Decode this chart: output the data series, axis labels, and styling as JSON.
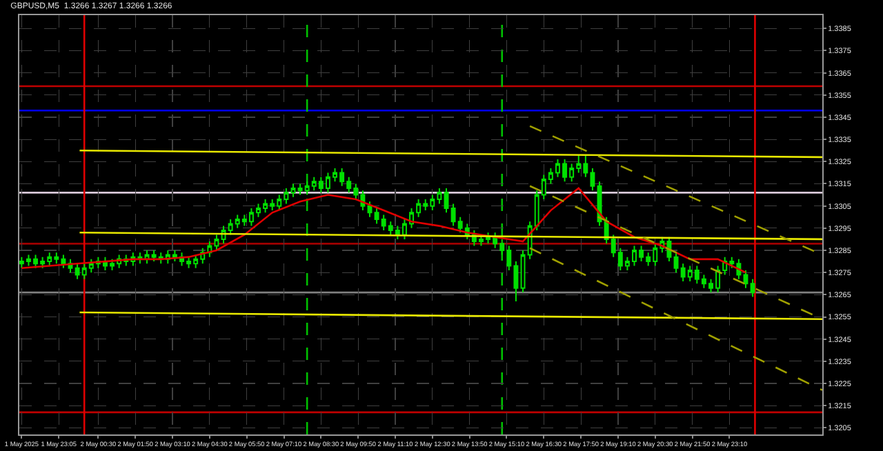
{
  "chart_data": {
    "type": "candlestick",
    "title": "GBPUSD,M5  1.3266 1.3267 1.3266 1.3266",
    "color": "#00e000",
    "grid": true,
    "x": [
      "2025-05-01T21:45",
      "2025-05-01T22:00",
      "2025-05-01T22:15",
      "2025-05-01T22:30",
      "2025-05-01T22:45",
      "2025-05-01T23:00",
      "2025-05-01T23:15",
      "2025-05-01T23:30",
      "2025-05-01T23:45",
      "2025-05-02T00:00",
      "2025-05-02T00:15",
      "2025-05-02T00:30",
      "2025-05-02T00:45",
      "2025-05-02T01:00",
      "2025-05-02T01:15",
      "2025-05-02T01:30",
      "2025-05-02T01:45",
      "2025-05-02T02:00",
      "2025-05-02T02:15",
      "2025-05-02T02:30",
      "2025-05-02T02:45",
      "2025-05-02T03:00",
      "2025-05-02T03:15",
      "2025-05-02T03:30",
      "2025-05-02T03:45",
      "2025-05-02T04:00",
      "2025-05-02T04:15",
      "2025-05-02T04:30",
      "2025-05-02T04:45",
      "2025-05-02T05:00",
      "2025-05-02T05:15",
      "2025-05-02T05:30",
      "2025-05-02T05:45",
      "2025-05-02T06:00",
      "2025-05-02T06:15",
      "2025-05-02T06:30",
      "2025-05-02T06:45",
      "2025-05-02T07:00",
      "2025-05-02T07:15",
      "2025-05-02T07:30",
      "2025-05-02T07:45",
      "2025-05-02T08:00",
      "2025-05-02T08:15",
      "2025-05-02T08:30",
      "2025-05-02T08:45",
      "2025-05-02T09:00",
      "2025-05-02T09:15",
      "2025-05-02T09:30",
      "2025-05-02T09:45",
      "2025-05-02T10:00",
      "2025-05-02T10:15",
      "2025-05-02T10:30",
      "2025-05-02T10:45",
      "2025-05-02T11:00",
      "2025-05-02T11:15",
      "2025-05-02T11:30",
      "2025-05-02T11:45",
      "2025-05-02T12:00",
      "2025-05-02T12:15",
      "2025-05-02T12:30",
      "2025-05-02T12:45",
      "2025-05-02T13:00",
      "2025-05-02T13:15",
      "2025-05-02T13:30",
      "2025-05-02T13:45",
      "2025-05-02T14:00",
      "2025-05-02T14:15",
      "2025-05-02T14:30",
      "2025-05-02T14:45",
      "2025-05-02T15:00",
      "2025-05-02T15:15",
      "2025-05-02T15:30",
      "2025-05-02T15:45",
      "2025-05-02T16:00",
      "2025-05-02T16:15",
      "2025-05-02T16:30",
      "2025-05-02T16:45",
      "2025-05-02T17:00",
      "2025-05-02T17:15",
      "2025-05-02T17:30",
      "2025-05-02T17:45",
      "2025-05-02T18:00",
      "2025-05-02T18:15",
      "2025-05-02T18:30",
      "2025-05-02T18:45",
      "2025-05-02T19:00",
      "2025-05-02T19:15",
      "2025-05-02T19:30",
      "2025-05-02T19:45",
      "2025-05-02T20:00",
      "2025-05-02T20:15",
      "2025-05-02T20:30",
      "2025-05-02T20:45",
      "2025-05-02T21:00",
      "2025-05-02T21:15",
      "2025-05-02T21:30",
      "2025-05-02T21:45",
      "2025-05-02T22:00",
      "2025-05-02T22:15",
      "2025-05-02T22:30",
      "2025-05-02T22:45",
      "2025-05-02T23:00",
      "2025-05-02T23:15",
      "2025-05-02T23:30",
      "2025-05-02T23:45",
      "2025-05-03T00:00"
    ],
    "ohlc": [
      [
        1.3279,
        1.3282,
        1.3277,
        1.328
      ],
      [
        1.328,
        1.3283,
        1.3278,
        1.3281
      ],
      [
        1.3281,
        1.3283,
        1.3277,
        1.3279
      ],
      [
        1.3279,
        1.3282,
        1.3277,
        1.328
      ],
      [
        1.328,
        1.3284,
        1.3278,
        1.3282
      ],
      [
        1.3282,
        1.3284,
        1.3279,
        1.3281
      ],
      [
        1.3281,
        1.3283,
        1.3277,
        1.3279
      ],
      [
        1.3279,
        1.3281,
        1.3275,
        1.3277
      ],
      [
        1.3277,
        1.3279,
        1.3272,
        1.3274
      ],
      [
        1.3274,
        1.3279,
        1.3272,
        1.3277
      ],
      [
        1.3277,
        1.3281,
        1.3275,
        1.3279
      ],
      [
        1.3279,
        1.3282,
        1.3277,
        1.328
      ],
      [
        1.328,
        1.3282,
        1.3276,
        1.3278
      ],
      [
        1.3278,
        1.3281,
        1.3276,
        1.3279
      ],
      [
        1.3279,
        1.3283,
        1.3277,
        1.3281
      ],
      [
        1.3281,
        1.3283,
        1.3278,
        1.328
      ],
      [
        1.328,
        1.3284,
        1.3278,
        1.3282
      ],
      [
        1.3282,
        1.3284,
        1.3279,
        1.3281
      ],
      [
        1.3281,
        1.3285,
        1.3279,
        1.3283
      ],
      [
        1.3283,
        1.3285,
        1.328,
        1.3282
      ],
      [
        1.3282,
        1.3284,
        1.3279,
        1.3281
      ],
      [
        1.3281,
        1.3285,
        1.3279,
        1.3283
      ],
      [
        1.3283,
        1.3285,
        1.328,
        1.3282
      ],
      [
        1.3282,
        1.3284,
        1.3278,
        1.328
      ],
      [
        1.328,
        1.3282,
        1.3277,
        1.3279
      ],
      [
        1.3279,
        1.3283,
        1.3277,
        1.3281
      ],
      [
        1.3281,
        1.3286,
        1.3279,
        1.3284
      ],
      [
        1.3284,
        1.3289,
        1.3282,
        1.3287
      ],
      [
        1.3287,
        1.3292,
        1.3285,
        1.329
      ],
      [
        1.329,
        1.3296,
        1.3288,
        1.3294
      ],
      [
        1.3294,
        1.3299,
        1.3292,
        1.3297
      ],
      [
        1.3297,
        1.3301,
        1.3295,
        1.3299
      ],
      [
        1.3299,
        1.3301,
        1.3296,
        1.3298
      ],
      [
        1.3298,
        1.3304,
        1.3296,
        1.3302
      ],
      [
        1.3302,
        1.3306,
        1.33,
        1.3304
      ],
      [
        1.3304,
        1.3308,
        1.3302,
        1.3306
      ],
      [
        1.3306,
        1.3308,
        1.3303,
        1.3305
      ],
      [
        1.3305,
        1.331,
        1.3303,
        1.3308
      ],
      [
        1.3308,
        1.3313,
        1.3306,
        1.3311
      ],
      [
        1.3311,
        1.3315,
        1.3309,
        1.3313
      ],
      [
        1.3313,
        1.3315,
        1.331,
        1.3312
      ],
      [
        1.3312,
        1.3316,
        1.331,
        1.3314
      ],
      [
        1.3314,
        1.3318,
        1.3312,
        1.3316
      ],
      [
        1.3316,
        1.3318,
        1.3311,
        1.3313
      ],
      [
        1.3313,
        1.332,
        1.3311,
        1.3318
      ],
      [
        1.3318,
        1.3322,
        1.3316,
        1.332
      ],
      [
        1.332,
        1.3322,
        1.3314,
        1.3316
      ],
      [
        1.3316,
        1.3318,
        1.3311,
        1.3313
      ],
      [
        1.3313,
        1.3315,
        1.3308,
        1.331
      ],
      [
        1.331,
        1.3312,
        1.3303,
        1.3305
      ],
      [
        1.3305,
        1.3307,
        1.33,
        1.3302
      ],
      [
        1.3302,
        1.3304,
        1.3297,
        1.3299
      ],
      [
        1.3299,
        1.3301,
        1.3294,
        1.3296
      ],
      [
        1.3296,
        1.3298,
        1.3292,
        1.3294
      ],
      [
        1.3294,
        1.3296,
        1.329,
        1.3292
      ],
      [
        1.3292,
        1.3299,
        1.329,
        1.3297
      ],
      [
        1.3297,
        1.3304,
        1.3295,
        1.3302
      ],
      [
        1.3302,
        1.3308,
        1.33,
        1.3306
      ],
      [
        1.3306,
        1.3308,
        1.3303,
        1.3305
      ],
      [
        1.3305,
        1.331,
        1.3303,
        1.3308
      ],
      [
        1.3308,
        1.3313,
        1.3306,
        1.3311
      ],
      [
        1.3311,
        1.3313,
        1.3302,
        1.3304
      ],
      [
        1.3304,
        1.3306,
        1.3296,
        1.3298
      ],
      [
        1.3298,
        1.33,
        1.3293,
        1.3295
      ],
      [
        1.3295,
        1.3297,
        1.329,
        1.3292
      ],
      [
        1.3292,
        1.3294,
        1.3287,
        1.3289
      ],
      [
        1.3289,
        1.3292,
        1.3287,
        1.329
      ],
      [
        1.329,
        1.3293,
        1.3288,
        1.3291
      ],
      [
        1.3291,
        1.3293,
        1.3286,
        1.3288
      ],
      [
        1.3288,
        1.329,
        1.3283,
        1.3285
      ],
      [
        1.3285,
        1.3287,
        1.3276,
        1.3278
      ],
      [
        1.3278,
        1.328,
        1.3262,
        1.3268
      ],
      [
        1.3268,
        1.3285,
        1.3266,
        1.3283
      ],
      [
        1.3283,
        1.3298,
        1.3281,
        1.3296
      ],
      [
        1.3296,
        1.3312,
        1.3294,
        1.331
      ],
      [
        1.331,
        1.3319,
        1.3308,
        1.3317
      ],
      [
        1.3317,
        1.3322,
        1.3315,
        1.332
      ],
      [
        1.332,
        1.3326,
        1.3318,
        1.3324
      ],
      [
        1.3324,
        1.3326,
        1.3316,
        1.3318
      ],
      [
        1.3318,
        1.3324,
        1.3316,
        1.3322
      ],
      [
        1.3322,
        1.3328,
        1.332,
        1.3324
      ],
      [
        1.3324,
        1.3328,
        1.3318,
        1.332
      ],
      [
        1.332,
        1.3322,
        1.3312,
        1.3314
      ],
      [
        1.3314,
        1.3316,
        1.3296,
        1.3298
      ],
      [
        1.3298,
        1.33,
        1.3288,
        1.329
      ],
      [
        1.329,
        1.3292,
        1.3282,
        1.3284
      ],
      [
        1.3284,
        1.3286,
        1.3276,
        1.3278
      ],
      [
        1.3278,
        1.3282,
        1.3276,
        1.328
      ],
      [
        1.328,
        1.3287,
        1.3278,
        1.3285
      ],
      [
        1.3285,
        1.3287,
        1.328,
        1.3282
      ],
      [
        1.3282,
        1.3284,
        1.3278,
        1.328
      ],
      [
        1.328,
        1.3288,
        1.3278,
        1.3286
      ],
      [
        1.3286,
        1.3291,
        1.3284,
        1.3289
      ],
      [
        1.3289,
        1.3291,
        1.328,
        1.3282
      ],
      [
        1.3282,
        1.3284,
        1.3275,
        1.3277
      ],
      [
        1.3277,
        1.3279,
        1.3271,
        1.3273
      ],
      [
        1.3273,
        1.3278,
        1.3271,
        1.3276
      ],
      [
        1.3276,
        1.3278,
        1.327,
        1.3272
      ],
      [
        1.3272,
        1.3274,
        1.3268,
        1.327
      ],
      [
        1.327,
        1.3272,
        1.3266,
        1.3268
      ],
      [
        1.3268,
        1.3278,
        1.3266,
        1.3276
      ],
      [
        1.3276,
        1.3282,
        1.3274,
        1.328
      ],
      [
        1.328,
        1.3282,
        1.3277,
        1.3279
      ],
      [
        1.3279,
        1.3281,
        1.3272,
        1.3274
      ],
      [
        1.3274,
        1.3276,
        1.3268,
        1.327
      ],
      [
        1.327,
        1.3272,
        1.3264,
        1.3266
      ]
    ],
    "series": [
      {
        "type": "line",
        "color": "#e00000",
        "x": [
          "2025-05-01T21:45",
          "2025-05-01T22:45",
          "2025-05-01T23:45",
          "2025-05-02T00:45",
          "2025-05-02T01:45",
          "2025-05-02T02:45",
          "2025-05-02T03:45",
          "2025-05-02T04:45",
          "2025-05-02T05:45",
          "2025-05-02T06:45",
          "2025-05-02T07:45",
          "2025-05-02T08:45",
          "2025-05-02T09:45",
          "2025-05-02T10:45",
          "2025-05-02T11:45",
          "2025-05-02T12:45",
          "2025-05-02T13:45",
          "2025-05-02T14:45",
          "2025-05-02T15:45",
          "2025-05-02T16:45",
          "2025-05-02T17:45",
          "2025-05-02T18:45",
          "2025-05-02T19:45",
          "2025-05-02T20:45",
          "2025-05-02T21:45",
          "2025-05-02T22:45",
          "2025-05-02T23:45"
        ],
        "values": [
          1.3277,
          1.3278,
          1.3279,
          1.328,
          1.3281,
          1.3281,
          1.3282,
          1.3285,
          1.3292,
          1.3302,
          1.3307,
          1.331,
          1.3308,
          1.3303,
          1.3298,
          1.3296,
          1.3293,
          1.3291,
          1.3289,
          1.3303,
          1.3313,
          1.3298,
          1.3291,
          1.3287,
          1.3281,
          1.3281,
          1.3275
        ]
      },
      {
        "type": "line",
        "color": "#e8e800",
        "x": [
          "2025-05-01T23:50",
          "2025-05-03T02:30"
        ],
        "values": [
          1.333,
          1.3327
        ]
      },
      {
        "type": "line",
        "color": "#e8e800",
        "x": [
          "2025-05-01T23:50",
          "2025-05-03T02:30"
        ],
        "values": [
          1.3293,
          1.329
        ]
      },
      {
        "type": "line",
        "color": "#e8e800",
        "x": [
          "2025-05-01T23:50",
          "2025-05-03T02:30"
        ],
        "values": [
          1.3257,
          1.3254
        ]
      },
      {
        "type": "line",
        "color": "#a0a000",
        "line_style": "dashed",
        "x": [
          "2025-05-02T16:00",
          "2025-05-03T02:30"
        ],
        "values": [
          1.3341,
          1.3283
        ]
      },
      {
        "type": "line",
        "color": "#a0a000",
        "line_style": "dashed",
        "x": [
          "2025-05-02T16:00",
          "2025-05-03T02:30"
        ],
        "values": [
          1.3314,
          1.3254
        ]
      },
      {
        "type": "line",
        "color": "#a0a000",
        "line_style": "dashed",
        "x": [
          "2025-05-02T16:00",
          "2025-05-03T02:30"
        ],
        "values": [
          1.3286,
          1.3222
        ]
      }
    ],
    "ref_lines": [
      {
        "axis": "y",
        "value": 1.3359,
        "color": "#c00000"
      },
      {
        "axis": "y",
        "value": 1.3348,
        "color": "#0000ff"
      },
      {
        "axis": "y",
        "value": 1.3311,
        "color": "#d8c8d8"
      },
      {
        "axis": "y",
        "value": 1.3288,
        "color": "#a00000"
      },
      {
        "axis": "y",
        "value": 1.3266,
        "color": "#808080"
      },
      {
        "axis": "y",
        "value": 1.3212,
        "color": "#c00000"
      },
      {
        "axis": "x",
        "value": "2025-05-02T00:00",
        "color": "#e00000"
      },
      {
        "axis": "x",
        "value": "2025-05-03T00:05",
        "color": "#e00000"
      },
      {
        "axis": "x",
        "value": "2025-05-02T08:00",
        "color": "#00c000",
        "line_style": "dashed"
      },
      {
        "axis": "x",
        "value": "2025-05-02T15:00",
        "color": "#00c000",
        "line_style": "dashed"
      }
    ],
    "xlim": [
      "2025-05-01T21:40",
      "2025-05-03T02:30"
    ],
    "xticks": [
      {
        "value": "2025-05-01T21:45",
        "label": "1 May 2025"
      },
      {
        "value": "2025-05-01T23:05",
        "label": "1 May 23:05"
      },
      {
        "value": "2025-05-02T00:30",
        "label": "2 May 00:30"
      },
      {
        "value": "2025-05-02T01:50",
        "label": "2 May 01:50"
      },
      {
        "value": "2025-05-02T03:10",
        "label": "2 May 03:10"
      },
      {
        "value": "2025-05-02T04:30",
        "label": "2 May 04:30"
      },
      {
        "value": "2025-05-02T05:50",
        "label": "2 May 05:50"
      },
      {
        "value": "2025-05-02T07:10",
        "label": "2 May 07:10"
      },
      {
        "value": "2025-05-02T08:30",
        "label": "2 May 08:30"
      },
      {
        "value": "2025-05-02T09:50",
        "label": "2 May 09:50"
      },
      {
        "value": "2025-05-02T11:10",
        "label": "2 May 11:10"
      },
      {
        "value": "2025-05-02T12:30",
        "label": "2 May 12:30"
      },
      {
        "value": "2025-05-02T13:50",
        "label": "2 May 13:50"
      },
      {
        "value": "2025-05-02T15:10",
        "label": "2 May 15:10"
      },
      {
        "value": "2025-05-02T16:30",
        "label": "2 May 16:30"
      },
      {
        "value": "2025-05-02T17:50",
        "label": "2 May 17:50"
      },
      {
        "value": "2025-05-02T19:10",
        "label": "2 May 19:10"
      },
      {
        "value": "2025-05-02T20:30",
        "label": "2 May 20:30"
      },
      {
        "value": "2025-05-02T21:50",
        "label": "2 May 21:50"
      },
      {
        "value": "2025-05-02T23:10",
        "label": "2 May 23:10"
      }
    ],
    "ylim": [
      1.3202,
      1.3391
    ],
    "yticks": [
      1.3385,
      1.3375,
      1.3365,
      1.3355,
      1.3345,
      1.3335,
      1.3325,
      1.3315,
      1.3305,
      1.3295,
      1.3285,
      1.3275,
      1.3265,
      1.3255,
      1.3245,
      1.3235,
      1.3225,
      1.3215,
      1.3205
    ]
  }
}
